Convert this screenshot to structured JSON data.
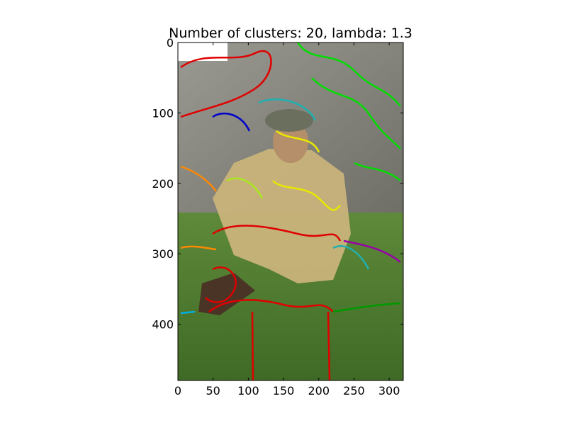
{
  "chart_data": {
    "type": "image",
    "title": "Number of clusters: 20, lambda: 1.3",
    "xlabel": "",
    "ylabel": "",
    "xlim": [
      0,
      320
    ],
    "ylim": [
      480,
      0
    ],
    "x_ticks": [
      0,
      50,
      100,
      150,
      200,
      250,
      300
    ],
    "y_ticks": [
      0,
      100,
      200,
      300,
      400
    ],
    "grid": false,
    "image_description_colors": {
      "grass": "#4d7a2e",
      "stone_wall": "#8a8a80",
      "uniform": "#c8b47a"
    },
    "contour_colors": [
      "#e00000",
      "#00dd00",
      "#e8e800",
      "#20b0b0",
      "#0000cc",
      "#ff8800",
      "#9900aa",
      "#a8e820",
      "#009900",
      "#00b0e0"
    ]
  }
}
